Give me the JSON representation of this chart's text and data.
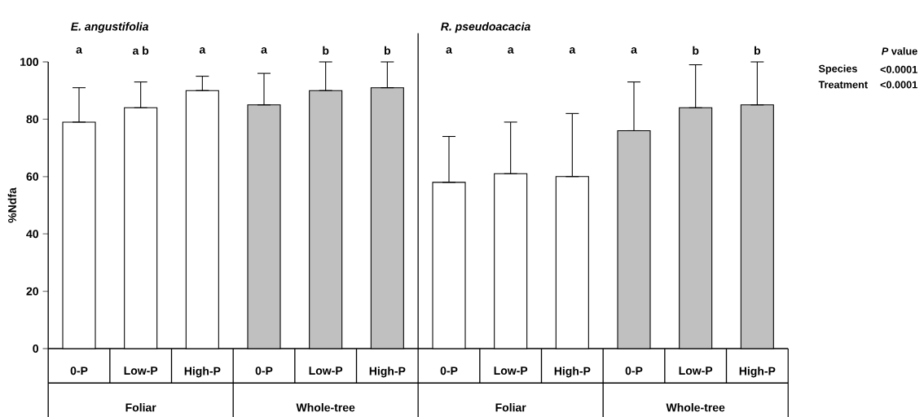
{
  "chart_data": {
    "type": "bar",
    "categories": [
      "0-P",
      "Low-P",
      "High-P",
      "0-P",
      "Low-P",
      "High-P",
      "0-P",
      "Low-P",
      "High-P",
      "0-P",
      "Low-P",
      "High-P"
    ],
    "values": [
      79,
      84,
      90,
      85,
      90,
      91,
      58,
      61,
      60,
      76,
      84,
      85
    ],
    "errors": [
      [
        79,
        91
      ],
      [
        84,
        93
      ],
      [
        90,
        95
      ],
      [
        85,
        96
      ],
      [
        90,
        100
      ],
      [
        91,
        100
      ],
      [
        58,
        74
      ],
      [
        61,
        79
      ],
      [
        60,
        82
      ],
      [
        76,
        93
      ],
      [
        84,
        99
      ],
      [
        85,
        100
      ]
    ],
    "colors": [
      "#ffffff",
      "#ffffff",
      "#ffffff",
      "#c0c0c0",
      "#c0c0c0",
      "#c0c0c0",
      "#ffffff",
      "#ffffff",
      "#ffffff",
      "#c0c0c0",
      "#c0c0c0",
      "#c0c0c0"
    ],
    "ylabel": "%Ndfa",
    "ylim": [
      0,
      100
    ],
    "yticks": [
      0,
      20,
      40,
      60,
      80,
      100
    ],
    "grid": false,
    "annotations": [
      "a",
      "a b",
      "a",
      "a",
      "b",
      "b",
      "a",
      "a",
      "a",
      "a",
      "b",
      "b",
      "E. angustifolia",
      "R. pseudoacacia",
      "Foliar",
      "Whole-tree",
      "Foliar",
      "Whole-tree",
      "*P* value",
      "Species",
      "<0.0001",
      "Treatment",
      "<0.0001"
    ]
  }
}
